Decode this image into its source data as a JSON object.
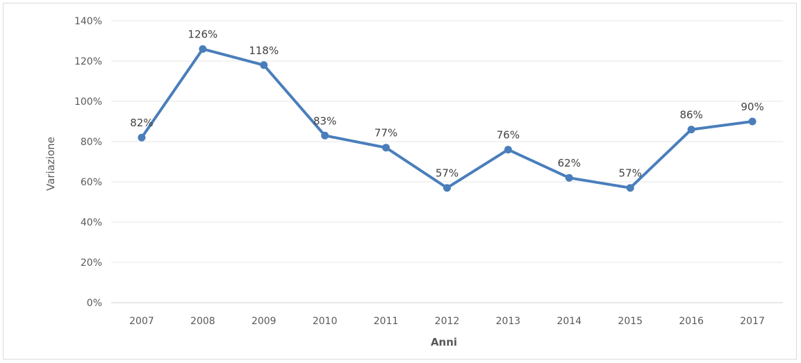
{
  "chart_data": {
    "type": "line",
    "title": "",
    "xlabel": "Anni",
    "ylabel": "Variazione",
    "categories": [
      "2007",
      "2008",
      "2009",
      "2010",
      "2011",
      "2012",
      "2013",
      "2014",
      "2015",
      "2016",
      "2017"
    ],
    "series": [
      {
        "values": [
          82,
          126,
          118,
          83,
          77,
          57,
          76,
          62,
          57,
          86,
          90
        ],
        "labels": [
          "82%",
          "126%",
          "118%",
          "83%",
          "77%",
          "57%",
          "76%",
          "62%",
          "57%",
          "86%",
          "90%"
        ],
        "color": "#4a7ebb"
      }
    ],
    "ylim": [
      0,
      140
    ],
    "yticks": [
      "0%",
      "20%",
      "40%",
      "60%",
      "80%",
      "100%",
      "120%",
      "140%"
    ],
    "grid": true,
    "legend": "none"
  }
}
